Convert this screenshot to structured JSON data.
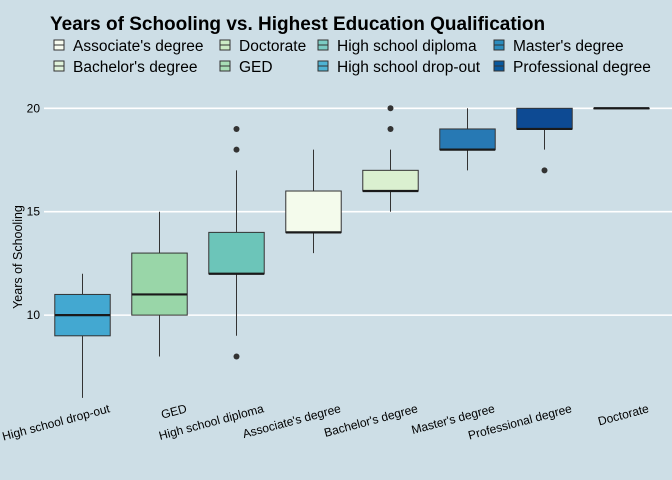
{
  "colors": {
    "background": "#cddee6",
    "gridline": "#ffffff",
    "stroke": "#333333"
  },
  "chart_data": {
    "type": "boxplot",
    "title": "Years of Schooling vs. Highest Education Qualification",
    "xlabel": "",
    "ylabel": "Years of Schooling",
    "ylim": [
      5.8,
      20.4
    ],
    "yticks": [
      10,
      15,
      20
    ],
    "grid": "horizontal",
    "legend_position": "top",
    "legend": [
      {
        "label": "Associate's degree",
        "color": "#f7fcf0"
      },
      {
        "label": "Bachelor's degree",
        "color": "#e0f3db"
      },
      {
        "label": "Doctorate",
        "color": "#ccebc5"
      },
      {
        "label": "GED",
        "color": "#a8ddb5"
      },
      {
        "label": "High school diploma",
        "color": "#7bccc4"
      },
      {
        "label": "High school drop-out",
        "color": "#4eb3d3"
      },
      {
        "label": "Master's degree",
        "color": "#2b8cbe"
      },
      {
        "label": "Professional degree",
        "color": "#08589e"
      }
    ],
    "boxes": [
      {
        "category": "High school drop-out",
        "color": "#43a8d1",
        "min": 6,
        "q1": 9,
        "median": 10,
        "q3": 11,
        "max": 12,
        "outliers": []
      },
      {
        "category": "GED",
        "color": "#99d6a8",
        "min": 8,
        "q1": 10,
        "median": 11,
        "q3": 13,
        "max": 15,
        "outliers": []
      },
      {
        "category": "High school diploma",
        "color": "#6cc5b9",
        "min": 9,
        "q1": 12,
        "median": 12,
        "q3": 14,
        "max": 17,
        "outliers": [
          8,
          18,
          19
        ]
      },
      {
        "category": "Associate's degree",
        "color": "#f4fbec",
        "min": 13,
        "q1": 14,
        "median": 14,
        "q3": 16,
        "max": 18,
        "outliers": []
      },
      {
        "category": "Bachelor's degree",
        "color": "#daf0d0",
        "min": 15,
        "q1": 16,
        "median": 16,
        "q3": 17,
        "max": 18,
        "outliers": [
          19,
          20
        ]
      },
      {
        "category": "Master's degree",
        "color": "#2779b4",
        "min": 17,
        "q1": 18,
        "median": 18,
        "q3": 19,
        "max": 20,
        "outliers": []
      },
      {
        "category": "Professional degree",
        "color": "#0d4a93",
        "min": 18,
        "q1": 19,
        "median": 19,
        "q3": 20,
        "max": 20,
        "outliers": [
          17
        ]
      },
      {
        "category": "Doctorate",
        "color": "#18407f",
        "min": 20,
        "q1": 20,
        "median": 20,
        "q3": 20,
        "max": 20,
        "outliers": []
      }
    ]
  }
}
